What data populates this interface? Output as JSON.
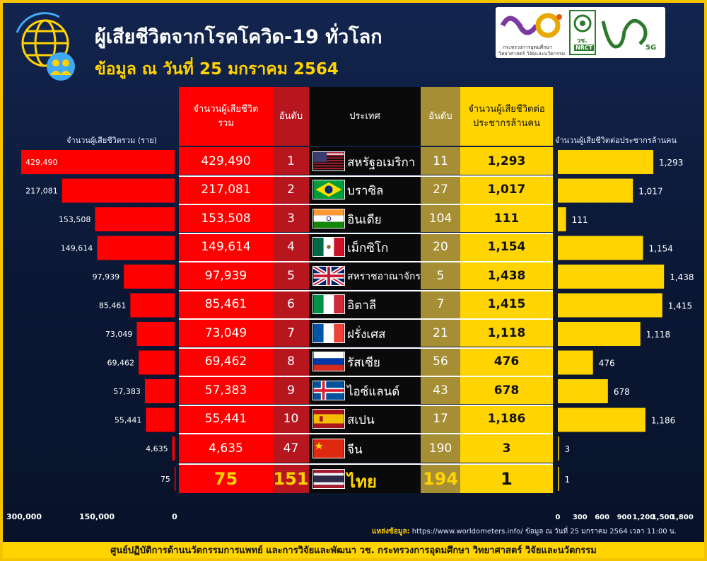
{
  "title": "ผู้เสียชีวิตจากโรคโควิด-19 ทั่วโลก",
  "subtitle": "ข้อมูล ณ วันที่ 25 มกราคม 2564",
  "logos": {
    "ministry_line1": "กระทรวงการอุดมศึกษา",
    "ministry_line2": "วิทยาศาสตร์ วิจัยและนวัตกรรม",
    "nrct_label": "วช.",
    "nrct_sub": "NRCT",
    "g5_label": "5G"
  },
  "left_axis_title": "จำนวนผู้เสียชีวิตรวม (ราย)",
  "right_axis_title": "จำนวนผู้เสียชีวิตต่อประชากรล้านคน",
  "headers": {
    "total": "จำนวนผู้เสียชีวิต รวม",
    "rank_total": "อันดับ",
    "country": "ประเทศ",
    "rank_per_million": "อันดับ",
    "per_million": "จำนวนผู้เสียชีวิตต่อ ประชากรล้านคน"
  },
  "chart_data": [
    {
      "type": "bar",
      "orientation": "horizontal",
      "direction": "right-to-left",
      "categories": [
        "สหรัฐอเมริกา",
        "บราซิล",
        "อินเดีย",
        "เม็กซิโก",
        "สหราชอาณาจักร",
        "อิตาลี",
        "ฝรั่งเศส",
        "รัสเซีย",
        "ไอซ์แลนด์",
        "สเปน",
        "จีน",
        "ไทย"
      ],
      "values": [
        429490,
        217081,
        153508,
        149614,
        97939,
        85461,
        73049,
        69462,
        57383,
        55441,
        4635,
        75
      ],
      "value_labels": [
        "429,490",
        "217,081",
        "153,508",
        "149,614",
        "97,939",
        "85,461",
        "73,049",
        "69,462",
        "57,383",
        "55,441",
        "4,635",
        "75"
      ],
      "xlabel": "จำนวนผู้เสียชีวิตรวม (ราย)",
      "xlim": [
        0,
        300000
      ],
      "xticks": [
        "300,000",
        "150,000",
        "0"
      ],
      "color": "#ff0000"
    },
    {
      "type": "bar",
      "orientation": "horizontal",
      "categories": [
        "สหรัฐอเมริกา",
        "บราซิล",
        "อินเดีย",
        "เม็กซิโก",
        "สหราชอาณาจักร",
        "อิตาลี",
        "ฝรั่งเศส",
        "รัสเซีย",
        "ไอซ์แลนด์",
        "สเปน",
        "จีน",
        "ไทย"
      ],
      "values": [
        1293,
        1017,
        111,
        1154,
        1438,
        1415,
        1118,
        476,
        678,
        1186,
        3,
        1
      ],
      "value_labels": [
        "1,293",
        "1,017",
        "111",
        "1,154",
        "1,438",
        "1,415",
        "1,118",
        "476",
        "678",
        "1,186",
        "3",
        "1"
      ],
      "xlabel": "จำนวนผู้เสียชีวิตต่อประชากรล้านคน",
      "xlim": [
        0,
        1800
      ],
      "xticks": [
        "0",
        "300",
        "600",
        "900",
        "1,200",
        "1,500",
        "1,800"
      ],
      "color": "#ffd400"
    },
    {
      "type": "table",
      "rows": [
        {
          "total": "429,490",
          "rank": "1",
          "country": "สหรัฐอเมริกา",
          "flag": "usa-flag",
          "rank_pm": "11",
          "per_million": "1,293"
        },
        {
          "total": "217,081",
          "rank": "2",
          "country": "บราซิล",
          "flag": "brazil-flag",
          "rank_pm": "27",
          "per_million": "1,017"
        },
        {
          "total": "153,508",
          "rank": "3",
          "country": "อินเดีย",
          "flag": "india-flag",
          "rank_pm": "104",
          "per_million": "111"
        },
        {
          "total": "149,614",
          "rank": "4",
          "country": "เม็กซิโก",
          "flag": "mexico-flag",
          "rank_pm": "20",
          "per_million": "1,154"
        },
        {
          "total": "97,939",
          "rank": "5",
          "country": "สหราชอาณาจักร",
          "flag": "uk-flag",
          "rank_pm": "5",
          "per_million": "1,438"
        },
        {
          "total": "85,461",
          "rank": "6",
          "country": "อิตาลี",
          "flag": "italy-flag",
          "rank_pm": "7",
          "per_million": "1,415"
        },
        {
          "total": "73,049",
          "rank": "7",
          "country": "ฝรั่งเศส",
          "flag": "france-flag",
          "rank_pm": "21",
          "per_million": "1,118"
        },
        {
          "total": "69,462",
          "rank": "8",
          "country": "รัสเซีย",
          "flag": "russia-flag",
          "rank_pm": "56",
          "per_million": "476"
        },
        {
          "total": "57,383",
          "rank": "9",
          "country": "ไอซ์แลนด์",
          "flag": "iceland-flag",
          "rank_pm": "43",
          "per_million": "678"
        },
        {
          "total": "55,441",
          "rank": "10",
          "country": "สเปน",
          "flag": "spain-flag",
          "rank_pm": "17",
          "per_million": "1,186"
        },
        {
          "total": "4,635",
          "rank": "47",
          "country": "จีน",
          "flag": "china-flag",
          "rank_pm": "190",
          "per_million": "3"
        },
        {
          "total": "75",
          "rank": "151",
          "country": "ไทย",
          "flag": "thailand-flag",
          "rank_pm": "194",
          "per_million": "1"
        }
      ]
    }
  ],
  "source": {
    "label": "แหล่งข้อมูล:",
    "text": " https://www.worldometers.info/ ข้อมูล ณ วันที่ 25 มกราคม 2564 เวลา 11:00 น."
  },
  "footer": "ศูนย์ปฏิบัติการด้านนวัตกรรมการแพทย์ และการวิจัยและพัฒนา  วช.   กระทรวงการอุดมศึกษา วิทยาศาสตร์ วิจัยและนวัตกรรม",
  "colors": {
    "red": "#ff0000",
    "yellow": "#ffd400",
    "dark_red": "#b8161f",
    "navy": "#0c1a3a",
    "black": "#0a0a0a",
    "olive": "#a68e34"
  }
}
